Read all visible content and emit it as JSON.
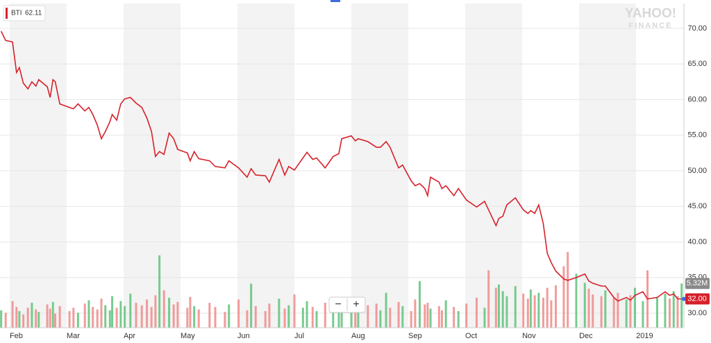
{
  "chart_data": {
    "type": "line",
    "x": [
      -0.15,
      -0.07,
      0.05,
      0.12,
      0.17,
      0.24,
      0.32,
      0.39,
      0.46,
      0.51,
      0.66,
      0.71,
      0.76,
      0.8,
      0.88,
      1.05,
      1.12,
      1.2,
      1.32,
      1.39,
      1.46,
      1.54,
      1.61,
      1.68,
      1.76,
      1.8,
      1.88,
      1.95,
      2.02,
      2.12,
      2.22,
      2.32,
      2.41,
      2.49,
      2.56,
      2.63,
      2.71,
      2.8,
      2.88,
      2.95,
      3.12,
      3.17,
      3.24,
      3.32,
      3.51,
      3.61,
      3.78,
      3.85,
      4.02,
      4.17,
      4.24,
      4.32,
      4.49,
      4.56,
      4.73,
      4.83,
      4.9,
      5.0,
      5.15,
      5.22,
      5.32,
      5.39,
      5.54,
      5.68,
      5.78,
      5.83,
      6.0,
      6.07,
      6.12,
      6.29,
      6.44,
      6.51,
      6.61,
      6.68,
      6.83,
      6.9,
      7.05,
      7.12,
      7.2,
      7.29,
      7.34,
      7.39,
      7.54,
      7.59,
      7.66,
      7.8,
      7.88,
      8.02,
      8.2,
      8.34,
      8.41,
      8.54,
      8.59,
      8.66,
      8.73,
      8.88,
      9.02,
      9.1,
      9.15,
      9.22,
      9.29,
      9.37,
      9.44,
      9.51,
      9.59,
      9.73,
      9.8,
      9.95,
      10.1,
      10.17,
      10.24,
      10.39,
      10.46,
      10.61,
      10.68,
      10.83,
      10.9,
      10.98,
      11.12,
      11.2,
      11.37,
      11.51,
      11.59,
      11.66,
      11.73,
      11.8
    ],
    "series": [
      {
        "name": "BTI",
        "color": "#d6202a",
        "values": [
          69.6,
          68.3,
          68.1,
          63.8,
          64.5,
          62.3,
          61.5,
          62.5,
          61.9,
          62.8,
          61.8,
          60.3,
          62.8,
          62.5,
          59.4,
          58.9,
          58.7,
          59.4,
          58.4,
          58.9,
          57.9,
          56.4,
          54.5,
          55.5,
          56.9,
          57.9,
          57.1,
          59.4,
          60.1,
          60.3,
          59.5,
          58.9,
          57.4,
          55.5,
          52.0,
          52.7,
          52.3,
          55.3,
          54.5,
          53.0,
          52.5,
          51.4,
          52.7,
          51.7,
          51.4,
          50.6,
          50.4,
          51.4,
          50.4,
          49.1,
          50.3,
          49.4,
          49.3,
          48.4,
          51.6,
          49.4,
          50.6,
          50.1,
          51.8,
          52.6,
          51.6,
          51.8,
          50.4,
          52.0,
          52.4,
          54.5,
          54.9,
          54.2,
          54.5,
          54.1,
          53.3,
          53.3,
          54.1,
          53.3,
          50.4,
          50.8,
          48.6,
          47.9,
          48.2,
          47.5,
          46.5,
          49.1,
          48.4,
          47.5,
          47.9,
          46.5,
          47.5,
          45.9,
          44.9,
          45.7,
          44.5,
          42.3,
          43.3,
          43.6,
          45.2,
          46.2,
          44.5,
          44.0,
          44.4,
          44.0,
          45.2,
          42.6,
          38.4,
          37.1,
          35.9,
          34.8,
          34.6,
          35.0,
          35.5,
          34.5,
          34.2,
          33.8,
          33.8,
          32.2,
          31.7,
          32.2,
          31.8,
          32.5,
          33.0,
          32.0,
          32.2,
          33.0,
          32.5,
          32.7,
          32.0,
          32.0
        ]
      }
    ],
    "volume": {
      "axis": "y2",
      "up_color": "#5fc27a",
      "down_color": "#f08a8a",
      "values": [
        2.1,
        1.8,
        3.2,
        2.5,
        2.0,
        1.6,
        2.4,
        3.0,
        2.2,
        1.9,
        2.8,
        2.3,
        3.1,
        1.7,
        2.6,
        2.0,
        2.4,
        1.8,
        2.9,
        3.3,
        2.5,
        2.2,
        3.5,
        2.7,
        2.1,
        3.8,
        2.4,
        3.2,
        2.6,
        4.1,
        3.0,
        2.7,
        3.4,
        2.5,
        3.9,
        8.7,
        4.5,
        3.6,
        2.8,
        3.1,
        2.4,
        3.7,
        2.6,
        2.2,
        3.0,
        2.5,
        1.9,
        2.8,
        3.4,
        2.1,
        5.3,
        2.6,
        2.0,
        2.9,
        3.5,
        2.3,
        2.7,
        4.0,
        2.4,
        3.2,
        2.5,
        2.0,
        3.0,
        2.2,
        2.8,
        1.9,
        2.6,
        3.6,
        2.3,
        2.7,
        2.9,
        2.1,
        4.2,
        2.4,
        3.1,
        2.6,
        2.0,
        3.4,
        5.6,
        2.8,
        3.0,
        2.3,
        2.6,
        2.1,
        3.3,
        2.5,
        2.0,
        2.9,
        3.6,
        2.4,
        6.9,
        4.8,
        5.2,
        4.4,
        3.8,
        5.0,
        4.1,
        3.5,
        4.6,
        3.9,
        4.2,
        3.6,
        4.8,
        3.3,
        5.1,
        7.4,
        9.1,
        6.5,
        5.4,
        4.7,
        4.0,
        3.8,
        4.5,
        3.6,
        4.2,
        3.4,
        3.9,
        4.8,
        3.2,
        6.9,
        3.7,
        4.1,
        3.5,
        4.4,
        3.8,
        5.32
      ]
    },
    "xlim": [
      -0.17,
      11.84
    ],
    "xticks": [
      {
        "value": 0,
        "label": "Feb"
      },
      {
        "value": 1,
        "label": "Mar"
      },
      {
        "value": 2,
        "label": "Apr"
      },
      {
        "value": 3,
        "label": "May"
      },
      {
        "value": 4,
        "label": "Jun"
      },
      {
        "value": 5,
        "label": "Jul"
      },
      {
        "value": 6,
        "label": "Aug"
      },
      {
        "value": 7,
        "label": "Sep"
      },
      {
        "value": 8,
        "label": "Oct"
      },
      {
        "value": 9,
        "label": "Nov"
      },
      {
        "value": 10,
        "label": "Dec"
      },
      {
        "value": 11,
        "label": "2019"
      }
    ],
    "ylim": [
      27.95,
      73.5
    ],
    "yticks": [
      {
        "value": 30,
        "label": "30.00"
      },
      {
        "value": 35,
        "label": "35.00"
      },
      {
        "value": 40,
        "label": "40.00"
      },
      {
        "value": 45,
        "label": "45.00"
      },
      {
        "value": 50,
        "label": "50.00"
      },
      {
        "value": 55,
        "label": "55.00"
      },
      {
        "value": 60,
        "label": "60.00"
      },
      {
        "value": 65,
        "label": "65.00"
      },
      {
        "value": 70,
        "label": "70.00"
      }
    ],
    "y2lim": [
      0,
      39
    ],
    "grid": true,
    "shade_color": "#f3f3f3",
    "ticker_price": 62.11,
    "price_badge": {
      "value": 32.0,
      "label": "32.00"
    },
    "volume_badge": {
      "value": 5.32,
      "label": "5.32M"
    },
    "watermark": [
      "YAHOO!",
      "FINANCE"
    ],
    "zoom": [
      "−",
      "+"
    ]
  }
}
